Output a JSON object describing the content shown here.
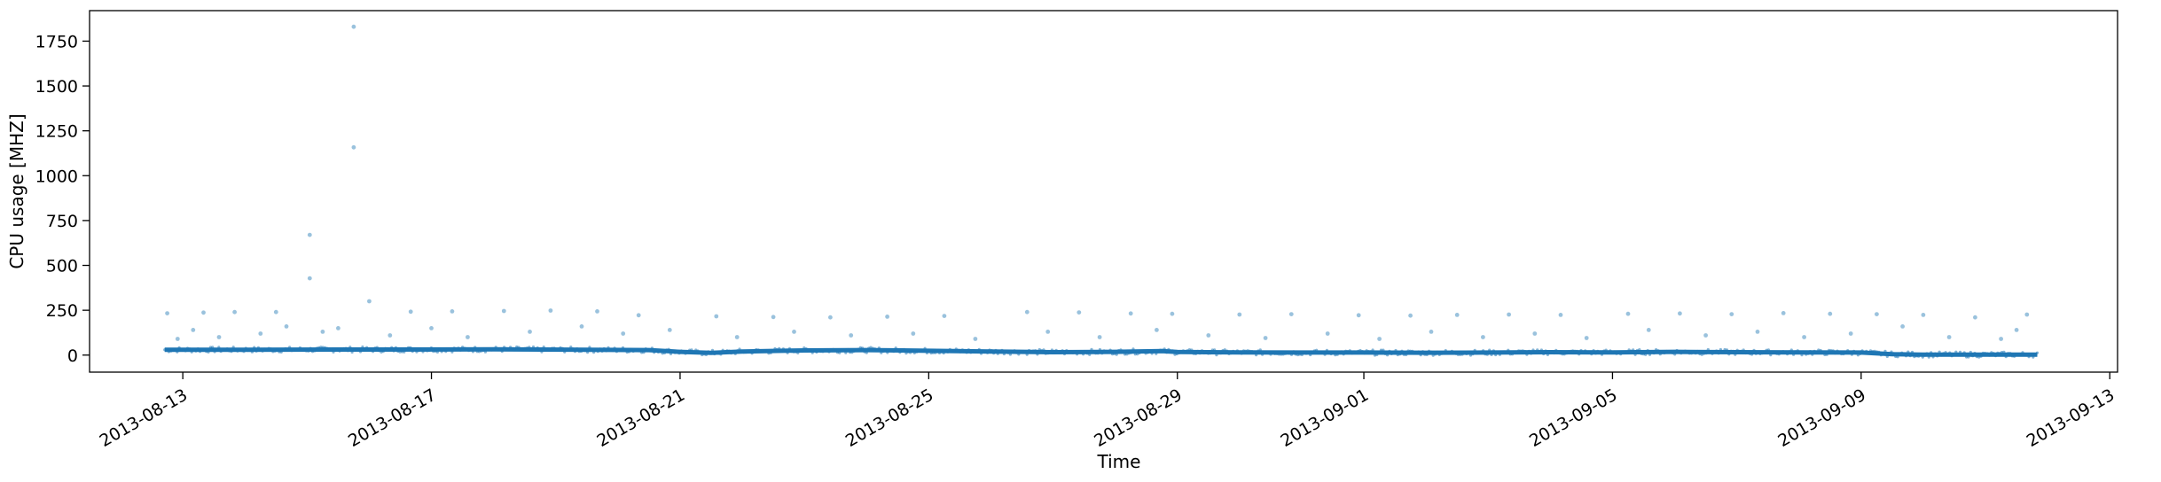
{
  "chart_data": {
    "type": "scatter",
    "title": "",
    "xlabel": "Time",
    "ylabel": "CPU usage [MHZ]",
    "xlim": [
      "2013-08-11T12:00",
      "2013-09-13T03:00"
    ],
    "ylim": [
      -95,
      1920
    ],
    "grid": false,
    "legend": "none",
    "colors": {
      "series": "#1f77b4",
      "axes": "#000000",
      "background": "#ffffff"
    },
    "x_ticks": [
      "2013-08-13",
      "2013-08-17",
      "2013-08-21",
      "2013-08-25",
      "2013-08-29",
      "2013-09-01",
      "2013-09-05",
      "2013-09-09",
      "2013-09-13"
    ],
    "y_ticks": [
      0,
      250,
      500,
      750,
      1000,
      1250,
      1500,
      1750
    ],
    "series": [
      {
        "time_range": [
          "2013-08-12T17:00",
          "2013-09-11T20:00"
        ],
        "baseline": [
          [
            "2013-08-12T17:00",
            30
          ],
          [
            "2013-08-14T00:00",
            30
          ],
          [
            "2013-08-16T00:00",
            31
          ],
          [
            "2013-08-18T00:00",
            32
          ],
          [
            "2013-08-19T12:00",
            30
          ],
          [
            "2013-08-20T12:00",
            28
          ],
          [
            "2013-08-21T00:00",
            18
          ],
          [
            "2013-08-21T12:00",
            12
          ],
          [
            "2013-08-22T00:00",
            20
          ],
          [
            "2013-08-23T00:00",
            26
          ],
          [
            "2013-08-24T00:00",
            28
          ],
          [
            "2013-08-25T00:00",
            24
          ],
          [
            "2013-08-26T00:00",
            20
          ],
          [
            "2013-08-27T00:00",
            16
          ],
          [
            "2013-08-28T00:00",
            18
          ],
          [
            "2013-08-28T18:00",
            22
          ],
          [
            "2013-08-29T00:00",
            17
          ],
          [
            "2013-08-30T00:00",
            15
          ],
          [
            "2013-08-31T00:00",
            14
          ],
          [
            "2013-09-01T00:00",
            14
          ],
          [
            "2013-09-02T00:00",
            13
          ],
          [
            "2013-09-03T00:00",
            14
          ],
          [
            "2013-09-04T00:00",
            16
          ],
          [
            "2013-09-05T00:00",
            15
          ],
          [
            "2013-09-06T00:00",
            18
          ],
          [
            "2013-09-07T00:00",
            16
          ],
          [
            "2013-09-08T00:00",
            15
          ],
          [
            "2013-09-09T00:00",
            14
          ],
          [
            "2013-09-09T12:00",
            5
          ],
          [
            "2013-09-10T00:00",
            3
          ],
          [
            "2013-09-11T20:00",
            3
          ]
        ],
        "outliers": [
          [
            "2013-08-15T18:00",
            1830
          ],
          [
            "2013-08-15T18:00",
            1158
          ],
          [
            "2013-08-15T01:00",
            670
          ],
          [
            "2013-08-15T01:00",
            428
          ],
          [
            "2013-08-16T00:00",
            300
          ],
          [
            "2013-08-15T12:00",
            150
          ],
          [
            "2013-08-12T18:00",
            233
          ],
          [
            "2013-08-13T08:00",
            237
          ],
          [
            "2013-08-13T20:00",
            240
          ],
          [
            "2013-08-14T12:00",
            240
          ],
          [
            "2013-08-16T16:00",
            242
          ],
          [
            "2013-08-17T08:00",
            244
          ],
          [
            "2013-08-18T04:00",
            246
          ],
          [
            "2013-08-18T22:00",
            248
          ],
          [
            "2013-08-19T16:00",
            244
          ],
          [
            "2013-08-20T08:00",
            222
          ],
          [
            "2013-08-21T14:00",
            216
          ],
          [
            "2013-08-22T12:00",
            212
          ],
          [
            "2013-08-23T10:00",
            210
          ],
          [
            "2013-08-24T08:00",
            214
          ],
          [
            "2013-08-25T06:00",
            218
          ],
          [
            "2013-08-26T14:00",
            240
          ],
          [
            "2013-08-27T10:00",
            238
          ],
          [
            "2013-08-28T06:00",
            232
          ],
          [
            "2013-08-28T22:00",
            230
          ],
          [
            "2013-08-30T00:00",
            226
          ],
          [
            "2013-08-30T20:00",
            228
          ],
          [
            "2013-08-31T22:00",
            222
          ],
          [
            "2013-09-01T18:00",
            220
          ],
          [
            "2013-09-02T12:00",
            224
          ],
          [
            "2013-09-03T08:00",
            226
          ],
          [
            "2013-09-04T04:00",
            224
          ],
          [
            "2013-09-05T06:00",
            230
          ],
          [
            "2013-09-06T02:00",
            232
          ],
          [
            "2013-09-06T22:00",
            228
          ],
          [
            "2013-09-07T18:00",
            234
          ],
          [
            "2013-09-08T12:00",
            230
          ],
          [
            "2013-09-09T06:00",
            228
          ],
          [
            "2013-09-10T00:00",
            224
          ],
          [
            "2013-09-10T20:00",
            210
          ],
          [
            "2013-09-11T16:00",
            226
          ],
          [
            "2013-08-12T22:00",
            90
          ],
          [
            "2013-08-13T04:00",
            140
          ],
          [
            "2013-08-13T14:00",
            100
          ],
          [
            "2013-08-14T06:00",
            120
          ],
          [
            "2013-08-14T16:00",
            160
          ],
          [
            "2013-08-15T06:00",
            130
          ],
          [
            "2013-08-16T08:00",
            110
          ],
          [
            "2013-08-17T00:00",
            150
          ],
          [
            "2013-08-17T14:00",
            100
          ],
          [
            "2013-08-18T14:00",
            130
          ],
          [
            "2013-08-19T10:00",
            160
          ],
          [
            "2013-08-20T02:00",
            120
          ],
          [
            "2013-08-20T20:00",
            140
          ],
          [
            "2013-08-21T22:00",
            100
          ],
          [
            "2013-08-22T20:00",
            130
          ],
          [
            "2013-08-23T18:00",
            110
          ],
          [
            "2013-08-24T18:00",
            120
          ],
          [
            "2013-08-25T18:00",
            90
          ],
          [
            "2013-08-26T22:00",
            130
          ],
          [
            "2013-08-27T18:00",
            100
          ],
          [
            "2013-08-28T16:00",
            140
          ],
          [
            "2013-08-29T12:00",
            110
          ],
          [
            "2013-08-30T10:00",
            95
          ],
          [
            "2013-08-31T10:00",
            120
          ],
          [
            "2013-09-01T06:00",
            90
          ],
          [
            "2013-09-02T02:00",
            130
          ],
          [
            "2013-09-02T22:00",
            100
          ],
          [
            "2013-09-03T18:00",
            120
          ],
          [
            "2013-09-04T14:00",
            95
          ],
          [
            "2013-09-05T14:00",
            140
          ],
          [
            "2013-09-06T12:00",
            110
          ],
          [
            "2013-09-07T08:00",
            130
          ],
          [
            "2013-09-08T02:00",
            100
          ],
          [
            "2013-09-08T20:00",
            120
          ],
          [
            "2013-09-09T16:00",
            160
          ],
          [
            "2013-09-10T10:00",
            100
          ],
          [
            "2013-09-11T06:00",
            90
          ],
          [
            "2013-09-11T12:00",
            140
          ]
        ]
      }
    ]
  }
}
